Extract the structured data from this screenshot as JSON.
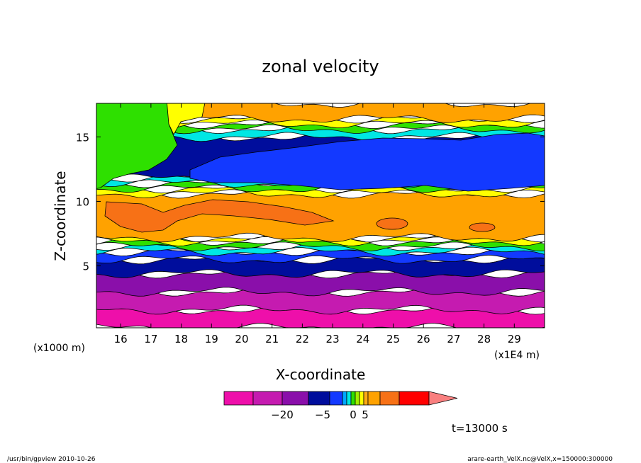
{
  "chart_data": {
    "type": "heatmap",
    "title": "zonal velocity",
    "xlabel": "X-coordinate",
    "ylabel": "Z-coordinate",
    "x_unit_label": "(x1E4 m)",
    "y_unit_label": "(x1000 m)",
    "xlim": [
      15.2,
      30.0
    ],
    "ylim": [
      0.2,
      17.6
    ],
    "x_ticks": [
      "16",
      "17",
      "18",
      "19",
      "20",
      "21",
      "22",
      "23",
      "24",
      "25",
      "26",
      "27",
      "28",
      "29"
    ],
    "y_ticks": [
      "5",
      "10",
      "15"
    ],
    "colorbar": {
      "colors": [
        "#ee0faa",
        "#c51bb0",
        "#8a0faa",
        "#000d9c",
        "#1339ff",
        "#00a7ff",
        "#00e7e4",
        "#2ee000",
        "#a0f000",
        "#ffff00",
        "#ffaa14",
        "#ffa200",
        "#f77116",
        "#ff0000",
        "#f97f7f"
      ],
      "ticks": [
        {
          "label": "−20",
          "value": -20
        },
        {
          "label": "−5",
          "value": -5
        },
        {
          "label": "0",
          "value": 0
        },
        {
          "label": "5",
          "value": 5
        }
      ]
    },
    "layers": [
      {
        "z_bottom": 0.2,
        "z_top": 1.6,
        "color": "#ee0faa"
      },
      {
        "z_bottom": 1.6,
        "z_top": 3.0,
        "color": "#c51bb0"
      },
      {
        "z_bottom": 3.0,
        "z_top": 4.4,
        "color": "#8a0faa"
      },
      {
        "z_bottom": 4.4,
        "z_top": 5.5,
        "color": "#000d9c"
      },
      {
        "z_bottom": 5.5,
        "z_top": 6.1,
        "color": "#1339ff"
      },
      {
        "z_bottom": 6.1,
        "z_top": 6.5,
        "color": "#00e7e4"
      },
      {
        "z_bottom": 6.5,
        "z_top": 6.9,
        "color": "#2ee000"
      },
      {
        "z_bottom": 6.9,
        "z_top": 7.2,
        "color": "#ffff00"
      },
      {
        "z_bottom": 7.2,
        "z_top": 10.6,
        "color": "#ffa200"
      },
      {
        "z_bottom": 10.6,
        "z_top": 11.0,
        "color": "#ffff00"
      },
      {
        "z_bottom": 11.0,
        "z_top": 11.4,
        "color": "#2ee000"
      },
      {
        "z_bottom": 11.4,
        "z_top": 11.8,
        "color": "#00e7e4"
      },
      {
        "z_bottom": 11.8,
        "z_top": 15.0,
        "color": "#000d9c"
      },
      {
        "z_bottom": 15.0,
        "z_top": 15.6,
        "color": "#00e7e4"
      },
      {
        "z_bottom": 15.6,
        "z_top": 16.0,
        "color": "#2ee000"
      },
      {
        "z_bottom": 16.0,
        "z_top": 16.4,
        "color": "#ffff00"
      },
      {
        "z_bottom": 16.4,
        "z_top": 17.6,
        "color": "#ffa200"
      }
    ],
    "patches": [
      {
        "name": "upper-left-green",
        "color": "#2ee000"
      },
      {
        "name": "upper-left-yellow",
        "color": "#ffff00"
      },
      {
        "name": "upper-jet-core",
        "color": "#1339ff"
      },
      {
        "name": "mid-orange-max",
        "color": "#f77116"
      }
    ],
    "time_label": "t=13000 s"
  },
  "footer": {
    "left": "/usr/bin/gpview  2010-10-26",
    "right": "arare-earth_VelX.nc@VelX,x=150000:300000"
  }
}
